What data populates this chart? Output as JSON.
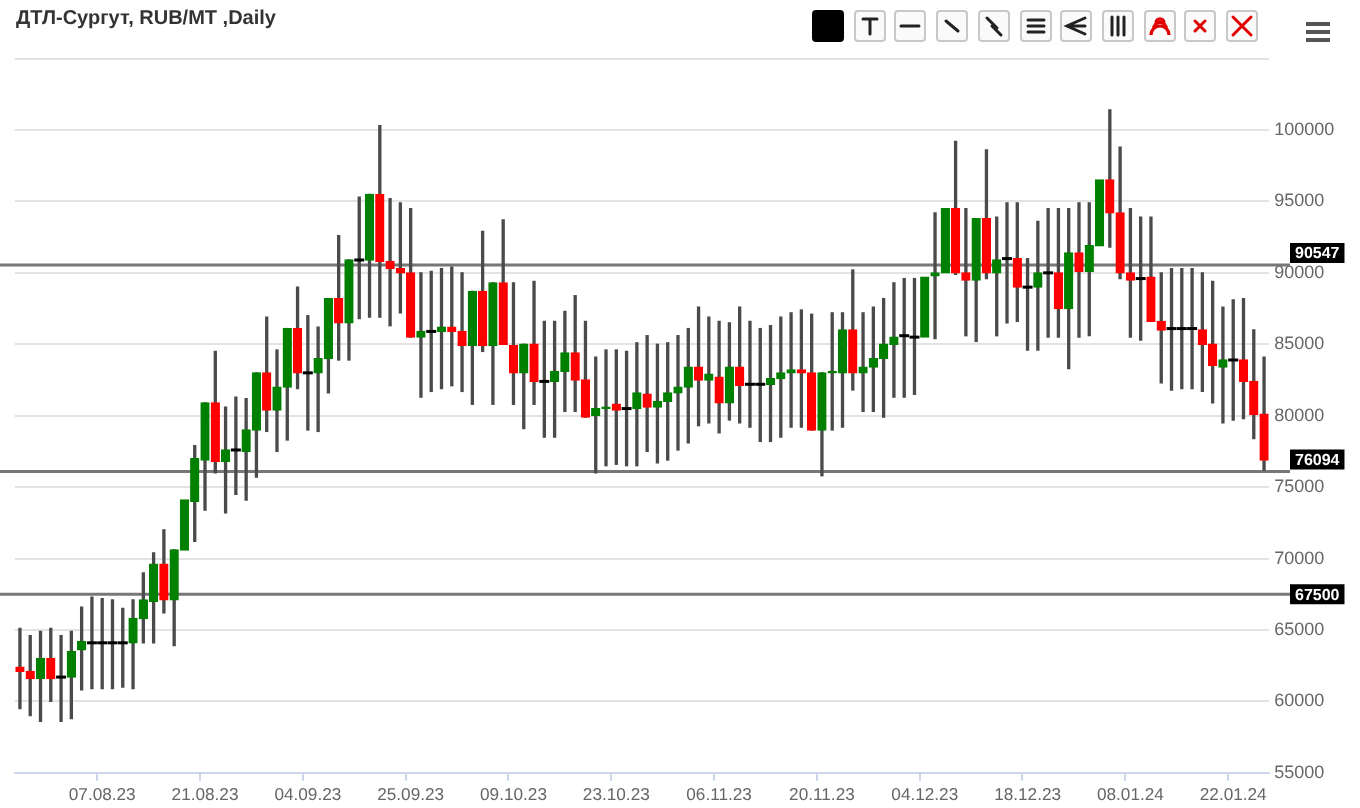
{
  "chart_data": {
    "type": "candlestick",
    "title": "ДТЛ-Сургут, RUB/MT ,Daily",
    "categories": [
      null,
      null,
      null,
      null,
      null,
      null,
      null,
      null,
      "07.08.23",
      null,
      null,
      null,
      null,
      null,
      null,
      null,
      null,
      null,
      "21.08.23",
      null,
      null,
      null,
      null,
      null,
      null,
      null,
      null,
      null,
      "04.09.23",
      null,
      null,
      null,
      null,
      null,
      null,
      null,
      null,
      null,
      "25.09.23",
      null,
      null,
      null,
      null,
      null,
      null,
      null,
      null,
      null,
      "09.10.23",
      null,
      null,
      null,
      null,
      null,
      null,
      null,
      null,
      null,
      "23.10.23",
      null,
      null,
      null,
      null,
      null,
      null,
      null,
      null,
      null,
      "06.11.23",
      null,
      null,
      null,
      null,
      null,
      null,
      null,
      null,
      null,
      "20.11.23",
      null,
      null,
      null,
      null,
      null,
      null,
      null,
      null,
      null,
      "04.12.23",
      null,
      null,
      null,
      null,
      null,
      null,
      null,
      null,
      null,
      "18.12.23",
      null,
      null,
      null,
      null,
      null,
      null,
      null,
      null,
      null,
      "08.01.24",
      null,
      null,
      null,
      null,
      null,
      null,
      null,
      null,
      null,
      "22.01.24",
      null,
      null,
      null
    ],
    "ohlc": [
      [
        62400,
        65100,
        59500,
        62100
      ],
      [
        62100,
        64600,
        59000,
        61600
      ],
      [
        61600,
        64900,
        58600,
        63000
      ],
      [
        63000,
        65100,
        60000,
        61600
      ],
      [
        61700,
        64600,
        58600,
        61700
      ],
      [
        61700,
        64900,
        58800,
        63500
      ],
      [
        63600,
        66600,
        60800,
        64200
      ],
      [
        64100,
        67300,
        60900,
        64100
      ],
      [
        64100,
        67200,
        60900,
        64100
      ],
      [
        64100,
        67100,
        60900,
        64100
      ],
      [
        64100,
        66500,
        61000,
        64100
      ],
      [
        64100,
        67100,
        60900,
        65800
      ],
      [
        65800,
        69000,
        64100,
        67100
      ],
      [
        67000,
        70400,
        64100,
        69600
      ],
      [
        69600,
        72000,
        66200,
        67100
      ],
      [
        67100,
        70600,
        63900,
        70600
      ],
      [
        70600,
        74100,
        70600,
        74100
      ],
      [
        74000,
        77900,
        71200,
        77000
      ],
      [
        76900,
        80900,
        73400,
        80900
      ],
      [
        80900,
        84500,
        76000,
        76800
      ],
      [
        76800,
        80600,
        73200,
        77600
      ],
      [
        77600,
        81300,
        74500,
        77600
      ],
      [
        77500,
        81200,
        74100,
        79000
      ],
      [
        79000,
        83000,
        75700,
        83000
      ],
      [
        83000,
        86900,
        78900,
        80400
      ],
      [
        80400,
        84600,
        77500,
        82000
      ],
      [
        82000,
        86100,
        78300,
        86100
      ],
      [
        86100,
        89000,
        81900,
        83000
      ],
      [
        83000,
        87000,
        79000,
        83000
      ],
      [
        83000,
        86200,
        78900,
        84000
      ],
      [
        84000,
        88200,
        81600,
        88200
      ],
      [
        88200,
        92600,
        83900,
        86500
      ],
      [
        86500,
        90900,
        83900,
        90900
      ],
      [
        90900,
        95300,
        86800,
        90900
      ],
      [
        90900,
        95500,
        86900,
        95500
      ],
      [
        95500,
        100300,
        86900,
        90800
      ],
      [
        90800,
        95200,
        86300,
        90300
      ],
      [
        90300,
        94900,
        87200,
        90000
      ],
      [
        90000,
        94500,
        85500,
        85500
      ],
      [
        85500,
        90000,
        81300,
        85900
      ],
      [
        85900,
        90100,
        81700,
        85900
      ],
      [
        85900,
        90300,
        81900,
        86200
      ],
      [
        86200,
        90400,
        82100,
        85900
      ],
      [
        85900,
        90000,
        81700,
        84900
      ],
      [
        84900,
        88700,
        80800,
        88700
      ],
      [
        88700,
        92900,
        84500,
        84900
      ],
      [
        84900,
        89300,
        80800,
        89300
      ],
      [
        89300,
        93700,
        85000,
        85000
      ],
      [
        84900,
        89300,
        80800,
        83000
      ],
      [
        83000,
        85000,
        79100,
        85000
      ],
      [
        85000,
        89400,
        80800,
        82400
      ],
      [
        82400,
        86600,
        78500,
        82400
      ],
      [
        82400,
        86600,
        78500,
        83100
      ],
      [
        83100,
        87300,
        80300,
        84400
      ],
      [
        84400,
        88400,
        80300,
        82500
      ],
      [
        82500,
        86600,
        79900,
        79900
      ],
      [
        80000,
        84100,
        76000,
        80500
      ],
      [
        80500,
        84600,
        76500,
        80600
      ],
      [
        80800,
        84600,
        76600,
        80400
      ],
      [
        80500,
        84500,
        76500,
        80500
      ],
      [
        80500,
        85100,
        76500,
        81600
      ],
      [
        81500,
        85600,
        77500,
        80600
      ],
      [
        80600,
        85000,
        76700,
        81000
      ],
      [
        81000,
        85100,
        76900,
        81600
      ],
      [
        81600,
        85600,
        77600,
        82000
      ],
      [
        82000,
        86100,
        78100,
        83400
      ],
      [
        83400,
        87600,
        79300,
        82500
      ],
      [
        82500,
        86900,
        79500,
        82900
      ],
      [
        82700,
        86600,
        78800,
        80900
      ],
      [
        80900,
        86500,
        79700,
        83400
      ],
      [
        83400,
        87600,
        79500,
        82100
      ],
      [
        82200,
        86600,
        79200,
        82200
      ],
      [
        82200,
        86100,
        78200,
        82200
      ],
      [
        82200,
        86300,
        78200,
        82600
      ],
      [
        82600,
        86900,
        78500,
        83000
      ],
      [
        83000,
        87200,
        79200,
        83200
      ],
      [
        83200,
        87400,
        79200,
        83000
      ],
      [
        83000,
        87100,
        79000,
        79000
      ],
      [
        79000,
        83000,
        75800,
        83000
      ],
      [
        83000,
        87200,
        79000,
        83100
      ],
      [
        83000,
        87200,
        79200,
        86000
      ],
      [
        86000,
        90200,
        81800,
        83000
      ],
      [
        83000,
        87200,
        80300,
        83400
      ],
      [
        83400,
        87600,
        80300,
        84000
      ],
      [
        84000,
        88200,
        79900,
        85000
      ],
      [
        85000,
        89300,
        81300,
        85500
      ],
      [
        85600,
        89600,
        81300,
        85600
      ],
      [
        85500,
        89600,
        81500,
        85500
      ],
      [
        85500,
        89700,
        85500,
        89700
      ],
      [
        89800,
        94200,
        85400,
        90000
      ],
      [
        90000,
        94500,
        90000,
        94500
      ],
      [
        94500,
        99200,
        89900,
        90000
      ],
      [
        90000,
        94500,
        85600,
        89500
      ],
      [
        89500,
        93800,
        85200,
        93800
      ],
      [
        93800,
        98600,
        89600,
        90000
      ],
      [
        90000,
        93900,
        85600,
        90900
      ],
      [
        91000,
        94900,
        86500,
        91000
      ],
      [
        91000,
        94900,
        86600,
        89000
      ],
      [
        89000,
        91000,
        84600,
        89000
      ],
      [
        89000,
        93600,
        84600,
        90000
      ],
      [
        90000,
        94500,
        85500,
        90000
      ],
      [
        90000,
        94500,
        85500,
        87500
      ],
      [
        87500,
        94500,
        83300,
        91400
      ],
      [
        91400,
        94900,
        85500,
        90100
      ],
      [
        90100,
        94900,
        85600,
        91900
      ],
      [
        91900,
        96500,
        91900,
        96500
      ],
      [
        96500,
        101400,
        91800,
        94200
      ],
      [
        94200,
        98800,
        89600,
        90000
      ],
      [
        90000,
        94500,
        85500,
        89500
      ],
      [
        89600,
        93900,
        85300,
        89600
      ],
      [
        89700,
        93900,
        86600,
        86600
      ],
      [
        86600,
        90000,
        82300,
        86000
      ],
      [
        86100,
        90300,
        81800,
        86100
      ],
      [
        86100,
        90300,
        81900,
        86100
      ],
      [
        86100,
        90300,
        81900,
        86100
      ],
      [
        86000,
        90000,
        81700,
        85000
      ],
      [
        85000,
        89400,
        80900,
        83500
      ],
      [
        83400,
        87600,
        79500,
        83900
      ],
      [
        83900,
        88100,
        79700,
        83900
      ],
      [
        83900,
        88200,
        79800,
        82400
      ],
      [
        82400,
        86000,
        78400,
        80100
      ],
      [
        80100,
        84100,
        76200,
        76900
      ]
    ],
    "colors": [
      "#ff0000",
      "#ff0000",
      "#008000",
      "#ff0000",
      "#000000",
      "#008000",
      "#008000",
      "#000000",
      "#000000",
      "#000000",
      "#000000",
      "#008000",
      "#008000",
      "#008000",
      "#ff0000",
      "#008000",
      "#008000",
      "#008000",
      "#008000",
      "#ff0000",
      "#008000",
      "#000000",
      "#008000",
      "#008000",
      "#ff0000",
      "#008000",
      "#008000",
      "#ff0000",
      "#000000",
      "#008000",
      "#008000",
      "#ff0000",
      "#008000",
      "#000000",
      "#008000",
      "#ff0000",
      "#ff0000",
      "#ff0000",
      "#ff0000",
      "#008000",
      "#000000",
      "#008000",
      "#ff0000",
      "#ff0000",
      "#008000",
      "#ff0000",
      "#008000",
      "#ff0000",
      "#ff0000",
      "#008000",
      "#ff0000",
      "#000000",
      "#008000",
      "#008000",
      "#ff0000",
      "#ff0000",
      "#008000",
      "#008000",
      "#ff0000",
      "#000000",
      "#008000",
      "#ff0000",
      "#008000",
      "#008000",
      "#008000",
      "#008000",
      "#ff0000",
      "#008000",
      "#ff0000",
      "#008000",
      "#ff0000",
      "#000000",
      "#000000",
      "#008000",
      "#008000",
      "#008000",
      "#ff0000",
      "#ff0000",
      "#008000",
      "#008000",
      "#008000",
      "#ff0000",
      "#008000",
      "#008000",
      "#008000",
      "#008000",
      "#000000",
      "#000000",
      "#008000",
      "#008000",
      "#008000",
      "#ff0000",
      "#ff0000",
      "#008000",
      "#ff0000",
      "#008000",
      "#000000",
      "#ff0000",
      "#000000",
      "#008000",
      "#000000",
      "#ff0000",
      "#008000",
      "#ff0000",
      "#008000",
      "#008000",
      "#ff0000",
      "#ff0000",
      "#ff0000",
      "#000000",
      "#ff0000",
      "#ff0000",
      "#000000",
      "#000000",
      "#000000",
      "#ff0000",
      "#ff0000",
      "#008000",
      "#000000",
      "#ff0000",
      "#ff0000",
      "#ff0000"
    ],
    "ylim": [
      55000,
      105000
    ],
    "yticks": [
      55000,
      60000,
      65000,
      70000,
      75000,
      80000,
      85000,
      90000,
      95000,
      100000,
      {
        "value": 105000,
        "label": null
      }
    ],
    "ref_lines": [
      {
        "axis": "y",
        "value": 90547,
        "label": "90547",
        "color": "#777777"
      },
      {
        "axis": "y",
        "value": 76094,
        "label": "76094",
        "color": "#777777"
      },
      {
        "axis": "y",
        "value": 67500,
        "label": "67500",
        "color": "#777777"
      }
    ],
    "grid": "y"
  }
}
